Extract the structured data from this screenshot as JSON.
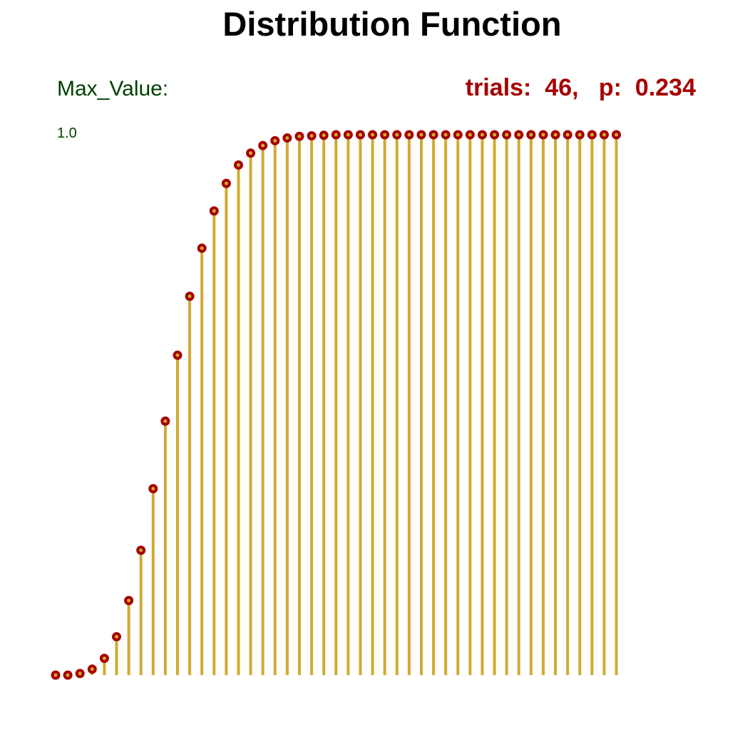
{
  "title": "Distribution Function",
  "max_label": "Max_Value:",
  "params": {
    "trials_label": "trials:",
    "trials": "46",
    "p_label": "p:",
    "p": "0.234"
  },
  "colors": {
    "stem": "#d2aa32",
    "marker": "#a50000",
    "label_green": "#004000",
    "params_red": "#a50000",
    "title": "#000000"
  },
  "chart_data": {
    "type": "stem",
    "title": "Distribution Function",
    "trials": 46,
    "p": 0.234,
    "ylim": [
      0,
      1.0
    ],
    "max_value_label": "1.0",
    "x": [
      0,
      1,
      2,
      3,
      4,
      5,
      6,
      7,
      8,
      9,
      10,
      11,
      12,
      13,
      14,
      15,
      16,
      17,
      18,
      19,
      20,
      21,
      22,
      23,
      24,
      25,
      26,
      27,
      28,
      29,
      30,
      31,
      32,
      33,
      34,
      35,
      36,
      37,
      38,
      39,
      40,
      41,
      42,
      43,
      44,
      45,
      46
    ],
    "values": [
      0.0,
      0.0,
      0.003,
      0.011,
      0.031,
      0.071,
      0.138,
      0.231,
      0.345,
      0.47,
      0.592,
      0.701,
      0.79,
      0.859,
      0.91,
      0.944,
      0.966,
      0.98,
      0.989,
      0.994,
      0.997,
      0.998,
      0.999,
      1.0,
      1.0,
      1.0,
      1.0,
      1.0,
      1.0,
      1.0,
      1.0,
      1.0,
      1.0,
      1.0,
      1.0,
      1.0,
      1.0,
      1.0,
      1.0,
      1.0,
      1.0,
      1.0,
      1.0,
      1.0,
      1.0,
      1.0,
      1.0
    ],
    "grid": false,
    "legend": "none"
  }
}
